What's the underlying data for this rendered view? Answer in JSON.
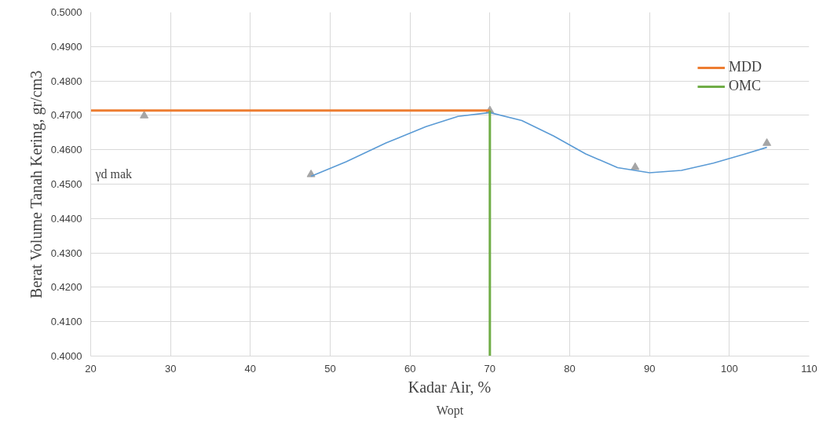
{
  "chart_data": {
    "type": "line",
    "xlabel": "Kadar Air, %",
    "ylabel": "Berat Volume Tanah Kering, gr/cm3",
    "xlim": [
      20,
      110
    ],
    "xticks": [
      20,
      30,
      40,
      50,
      60,
      70,
      80,
      90,
      100,
      110
    ],
    "ylim": [
      0.4,
      0.5
    ],
    "yticks": [
      {
        "value": 0.4,
        "label": "0.4000"
      },
      {
        "value": 0.41,
        "label": "0.4100"
      },
      {
        "value": 0.42,
        "label": "0.4200"
      },
      {
        "value": 0.43,
        "label": "0.4300"
      },
      {
        "value": 0.44,
        "label": "0.4400"
      },
      {
        "value": 0.45,
        "label": "0.4500"
      },
      {
        "value": 0.46,
        "label": "0.4600"
      },
      {
        "value": 0.47,
        "label": "0.4700"
      },
      {
        "value": 0.48,
        "label": "0.4800"
      },
      {
        "value": 0.49,
        "label": "0.4900"
      },
      {
        "value": 0.5,
        "label": "0.5000"
      }
    ],
    "grid": true,
    "legend": "top right",
    "series": [
      {
        "type": "scatter",
        "marker": "triangle",
        "color": "#a5a5a5",
        "x": [
          26.7,
          47.6,
          70,
          88.2,
          104.7
        ],
        "values": [
          0.4699,
          0.4528,
          0.4714,
          0.4549,
          0.4619
        ]
      },
      {
        "color": "#5b9bd5",
        "x": [
          47.6,
          52,
          57,
          62,
          66,
          70,
          74,
          78,
          82,
          86,
          90,
          94,
          98,
          102,
          104.7
        ],
        "values": [
          0.4523,
          0.4565,
          0.462,
          0.4667,
          0.4697,
          0.4708,
          0.4685,
          0.464,
          0.4588,
          0.4548,
          0.4533,
          0.454,
          0.4561,
          0.4588,
          0.4607
        ]
      },
      {
        "name": "MDD",
        "color": "#ed7d31",
        "x": [
          20,
          70
        ],
        "values": [
          0.4714,
          0.4714
        ]
      },
      {
        "name": "OMC",
        "color": "#70ad47",
        "x": [
          70,
          70
        ],
        "values": [
          0.4,
          0.4714
        ]
      }
    ],
    "annotations": [
      "γd mak",
      "Wopt"
    ]
  }
}
